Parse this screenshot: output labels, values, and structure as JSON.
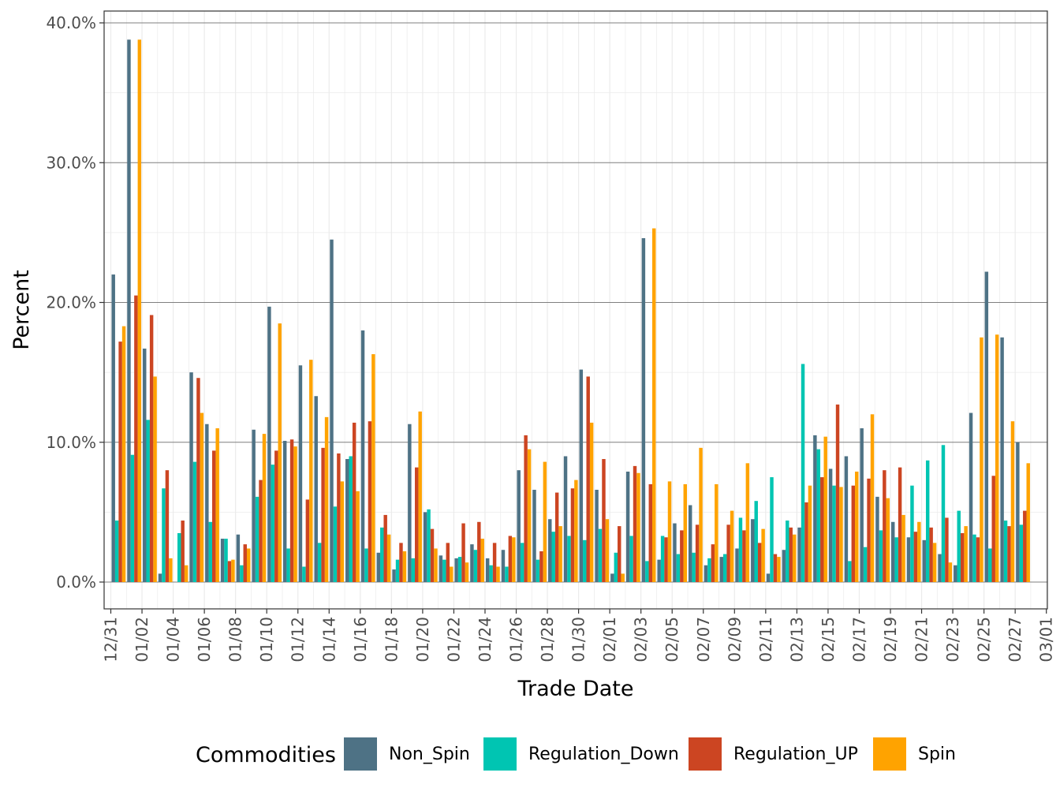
{
  "chart_data": {
    "type": "bar",
    "xlabel": "Trade Date",
    "ylabel": "Percent",
    "ylim": [
      -0.02,
      0.4
    ],
    "y_ticks": [
      0,
      0.1,
      0.2,
      0.3,
      0.4
    ],
    "y_tick_labels": [
      "0.0%",
      "10.0%",
      "20.0%",
      "30.0%",
      "40.0%"
    ],
    "x_tick_labels": [
      "12/31",
      "01/02",
      "01/04",
      "01/06",
      "01/08",
      "01/10",
      "01/12",
      "01/14",
      "01/16",
      "01/18",
      "01/20",
      "01/22",
      "01/24",
      "01/26",
      "01/28",
      "01/30",
      "02/01",
      "02/03",
      "02/05",
      "02/07",
      "02/09",
      "02/11",
      "02/13",
      "02/15",
      "02/17",
      "02/19",
      "02/21",
      "02/23",
      "02/25",
      "02/27",
      "03/01"
    ],
    "grid": true,
    "legend_position": "bottom",
    "legend_title": "Commodities",
    "categories": [
      "12/31",
      "01/01",
      "01/02",
      "01/03",
      "01/04",
      "01/05",
      "01/06",
      "01/07",
      "01/08",
      "01/09",
      "01/10",
      "01/11",
      "01/12",
      "01/13",
      "01/14",
      "01/15",
      "01/16",
      "01/17",
      "01/18",
      "01/19",
      "01/20",
      "01/21",
      "01/22",
      "01/23",
      "01/24",
      "01/25",
      "01/26",
      "01/27",
      "01/28",
      "01/29",
      "01/30",
      "01/31",
      "02/01",
      "02/02",
      "02/03",
      "02/04",
      "02/05",
      "02/06",
      "02/07",
      "02/08",
      "02/09",
      "02/10",
      "02/11",
      "02/12",
      "02/13",
      "02/14",
      "02/15",
      "02/16",
      "02/17",
      "02/18",
      "02/19",
      "02/20",
      "02/21",
      "02/22",
      "02/23",
      "02/24",
      "02/25",
      "02/26",
      "02/27",
      "02/28"
    ],
    "series": [
      {
        "name": "Non_Spin",
        "color": "#4e7285",
        "values": [
          0.22,
          0.388,
          0.167,
          0.006,
          0.0,
          0.15,
          0.113,
          0.031,
          0.034,
          0.109,
          0.197,
          0.101,
          0.155,
          0.133,
          0.245,
          0.088,
          0.18,
          0.021,
          0.009,
          0.113,
          0.05,
          0.019,
          0.017,
          0.027,
          0.017,
          0.023,
          0.08,
          0.066,
          0.045,
          0.09,
          0.152,
          0.066,
          0.006,
          0.079,
          0.246,
          0.016,
          0.042,
          0.055,
          0.012,
          0.018,
          0.024,
          0.045,
          0.006,
          0.023,
          0.039,
          0.105,
          0.081,
          0.09,
          0.11,
          0.061,
          0.043,
          0.032,
          0.03,
          0.02,
          0.012,
          0.121,
          0.222,
          0.175,
          0.1,
          0.0
        ]
      },
      {
        "name": "Regulation_Down",
        "color": "#00c5b2",
        "values": [
          0.044,
          0.091,
          0.116,
          0.067,
          0.035,
          0.086,
          0.043,
          0.031,
          0.012,
          0.061,
          0.084,
          0.024,
          0.011,
          0.028,
          0.054,
          0.09,
          0.024,
          0.039,
          0.016,
          0.017,
          0.052,
          0.016,
          0.018,
          0.023,
          0.012,
          0.011,
          0.028,
          0.016,
          0.036,
          0.033,
          0.03,
          0.038,
          0.021,
          0.033,
          0.015,
          0.033,
          0.02,
          0.021,
          0.017,
          0.02,
          0.046,
          0.058,
          0.075,
          0.044,
          0.156,
          0.095,
          0.069,
          0.015,
          0.025,
          0.037,
          0.032,
          0.069,
          0.087,
          0.098,
          0.051,
          0.034,
          0.024,
          0.044,
          0.041,
          0.0
        ]
      },
      {
        "name": "Regulation_UP",
        "color": "#cc4522",
        "values": [
          0.172,
          0.205,
          0.191,
          0.08,
          0.044,
          0.146,
          0.094,
          0.015,
          0.027,
          0.073,
          0.094,
          0.102,
          0.059,
          0.096,
          0.092,
          0.114,
          0.115,
          0.048,
          0.028,
          0.082,
          0.038,
          0.028,
          0.042,
          0.043,
          0.028,
          0.033,
          0.105,
          0.022,
          0.064,
          0.067,
          0.147,
          0.088,
          0.04,
          0.083,
          0.07,
          0.032,
          0.037,
          0.041,
          0.027,
          0.041,
          0.037,
          0.028,
          0.02,
          0.039,
          0.057,
          0.075,
          0.127,
          0.069,
          0.074,
          0.08,
          0.082,
          0.036,
          0.039,
          0.046,
          0.035,
          0.032,
          0.076,
          0.04,
          0.051,
          0.0
        ]
      },
      {
        "name": "Spin",
        "color": "#ffa300",
        "values": [
          0.183,
          0.388,
          0.147,
          0.017,
          0.012,
          0.121,
          0.11,
          0.016,
          0.024,
          0.106,
          0.185,
          0.097,
          0.159,
          0.118,
          0.072,
          0.065,
          0.163,
          0.034,
          0.022,
          0.122,
          0.024,
          0.011,
          0.014,
          0.031,
          0.011,
          0.032,
          0.095,
          0.086,
          0.04,
          0.073,
          0.114,
          0.045,
          0.006,
          0.078,
          0.253,
          0.072,
          0.07,
          0.096,
          0.07,
          0.051,
          0.085,
          0.038,
          0.018,
          0.034,
          0.069,
          0.104,
          0.068,
          0.079,
          0.12,
          0.06,
          0.048,
          0.043,
          0.028,
          0.014,
          0.04,
          0.175,
          0.177,
          0.115,
          0.085,
          0.0
        ]
      }
    ]
  }
}
